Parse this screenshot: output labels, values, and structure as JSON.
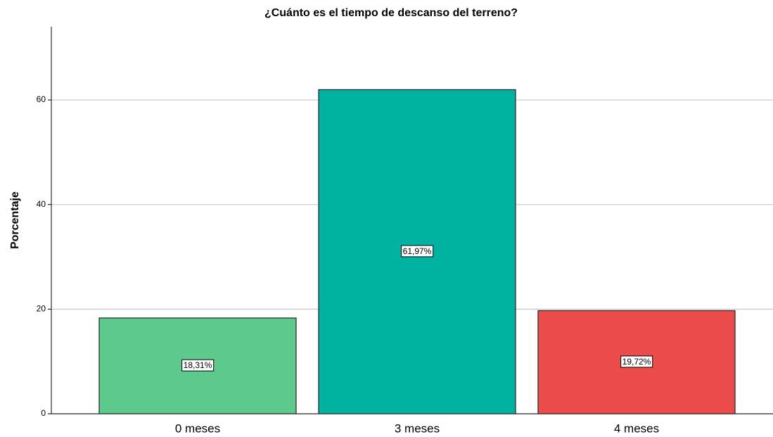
{
  "chart_data": {
    "type": "bar",
    "title": "¿Cuánto es el tiempo de descanso del terreno?",
    "y_label": "Porcentaje",
    "categories": [
      "0 meses",
      "3 meses",
      "4 meses"
    ],
    "values": [
      18.31,
      61.97,
      19.72
    ],
    "value_labels": [
      "18,31%",
      "61,97%",
      "19,72%"
    ],
    "colors": [
      "#5ec98c",
      "#00b3a0",
      "#ec4b4b"
    ],
    "ylim": [
      0,
      74
    ],
    "yticks": [
      0,
      20,
      40,
      60
    ],
    "grid": true
  }
}
